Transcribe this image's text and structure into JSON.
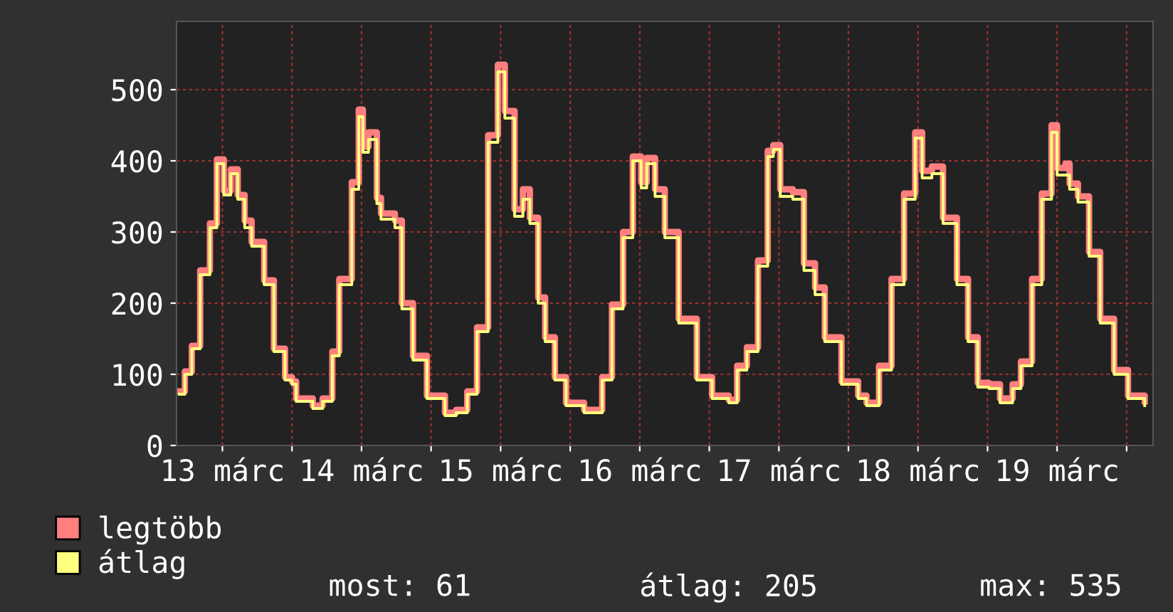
{
  "chart_data": {
    "type": "step",
    "x": [
      13.19,
      13.23,
      13.28,
      13.34,
      13.41,
      13.46,
      13.51,
      13.56,
      13.61,
      13.66,
      13.71,
      13.8,
      13.87,
      13.95,
      14.0,
      14.03,
      14.15,
      14.22,
      14.29,
      14.34,
      14.43,
      14.48,
      14.51,
      14.55,
      14.61,
      14.64,
      14.74,
      14.79,
      14.87,
      14.97,
      15.1,
      15.18,
      15.26,
      15.33,
      15.41,
      15.48,
      15.53,
      15.6,
      15.66,
      15.71,
      15.77,
      15.82,
      15.89,
      15.97,
      16.1,
      16.17,
      16.23,
      16.3,
      16.38,
      16.45,
      16.51,
      16.55,
      16.61,
      16.68,
      16.78,
      16.91,
      17.02,
      17.14,
      17.2,
      17.27,
      17.35,
      17.42,
      17.46,
      17.51,
      17.6,
      17.68,
      17.76,
      17.83,
      17.95,
      18.07,
      18.13,
      18.22,
      18.31,
      18.4,
      18.48,
      18.53,
      18.6,
      18.68,
      18.78,
      18.86,
      18.93,
      19.01,
      19.09,
      19.18,
      19.24,
      19.32,
      19.39,
      19.46,
      19.5,
      19.56,
      19.59,
      19.65,
      19.73,
      19.81,
      19.91,
      20.01,
      20.13
    ],
    "series": [
      {
        "name": "legtöbb",
        "color": "#ff7f7f",
        "values": [
          76,
          104,
          140,
          246,
          312,
          402,
          358,
          388,
          352,
          316,
          286,
          232,
          136,
          96,
          90,
          66,
          56,
          66,
          132,
          234,
          370,
          472,
          420,
          440,
          348,
          326,
          316,
          200,
          126,
          70,
          46,
          50,
          76,
          166,
          436,
          535,
          470,
          332,
          360,
          320,
          208,
          152,
          96,
          60,
          50,
          50,
          96,
          198,
          300,
          406,
          370,
          404,
          360,
          300,
          178,
          96,
          70,
          64,
          112,
          138,
          260,
          414,
          422,
          360,
          356,
          256,
          222,
          152,
          90,
          70,
          60,
          112,
          234,
          354,
          440,
          386,
          392,
          320,
          234,
          152,
          88,
          86,
          66,
          86,
          118,
          234,
          354,
          450,
          390,
          396,
          368,
          350,
          272,
          178,
          106,
          70,
          62
        ]
      },
      {
        "name": "átlag",
        "color": "#ffff7f",
        "values": [
          72,
          100,
          136,
          240,
          306,
          396,
          352,
          382,
          346,
          306,
          280,
          226,
          132,
          92,
          86,
          62,
          52,
          62,
          126,
          226,
          360,
          462,
          412,
          430,
          340,
          318,
          306,
          192,
          120,
          66,
          42,
          46,
          72,
          160,
          426,
          525,
          460,
          322,
          346,
          312,
          200,
          146,
          92,
          56,
          46,
          46,
          92,
          192,
          292,
          400,
          362,
          396,
          350,
          292,
          172,
          92,
          66,
          60,
          106,
          132,
          252,
          406,
          416,
          350,
          346,
          246,
          212,
          146,
          86,
          66,
          56,
          106,
          226,
          346,
          432,
          376,
          382,
          312,
          226,
          146,
          82,
          80,
          60,
          80,
          112,
          226,
          346,
          440,
          380,
          380,
          360,
          342,
          266,
          172,
          100,
          66,
          56
        ]
      }
    ],
    "xlim": [
      13.17,
      20.19
    ],
    "xticks": [
      {
        "value": 13.5,
        "label": "13 márc"
      },
      {
        "value": 14,
        "label": null
      },
      {
        "value": 14.5,
        "label": "14 márc"
      },
      {
        "value": 15,
        "label": null
      },
      {
        "value": 15.5,
        "label": "15 márc"
      },
      {
        "value": 16,
        "label": null
      },
      {
        "value": 16.5,
        "label": "16 márc"
      },
      {
        "value": 17,
        "label": null
      },
      {
        "value": 17.5,
        "label": "17 márc"
      },
      {
        "value": 18,
        "label": null
      },
      {
        "value": 18.5,
        "label": "18 márc"
      },
      {
        "value": 19,
        "label": null
      },
      {
        "value": 19.5,
        "label": "19 márc"
      },
      {
        "value": 20,
        "label": null
      }
    ],
    "ylim": [
      0,
      596
    ],
    "yticks": [
      0,
      100,
      200,
      300,
      400,
      500
    ],
    "grid": true,
    "legend": "bottom left",
    "annotations": [
      "most: 61",
      "átlag: 205",
      "max: 535"
    ]
  }
}
